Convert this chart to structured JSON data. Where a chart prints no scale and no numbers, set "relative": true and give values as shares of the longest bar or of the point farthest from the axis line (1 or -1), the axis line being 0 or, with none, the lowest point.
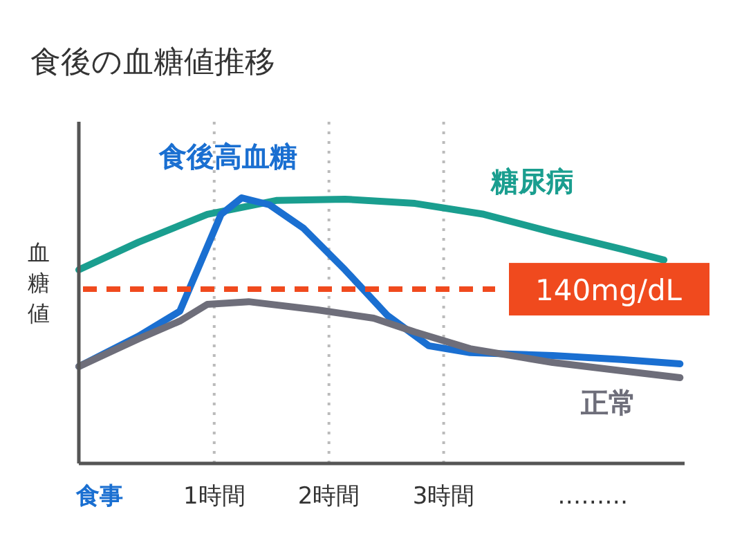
{
  "chart_data": {
    "type": "line",
    "title": "食後の血糖値推移",
    "ylabel": "血糖値",
    "relative": true,
    "xlim": [
      -0.18,
      5.1
    ],
    "xticks": [
      {
        "value": 0,
        "label": "食事"
      },
      {
        "value": 1,
        "label": "1時間"
      },
      {
        "value": 2,
        "label": "2時間"
      },
      {
        "value": 3,
        "label": "3時間"
      },
      {
        "value": 4.3,
        "label": "………"
      }
    ],
    "series": [
      {
        "name": "糖尿病",
        "color": "#1a9e8f",
        "x": [
          -0.18,
          0.34,
          0.94,
          1.54,
          2.14,
          2.75,
          3.35,
          3.95,
          4.55,
          4.92
        ],
        "values": [
          0.729,
          0.833,
          0.938,
          0.99,
          0.995,
          0.979,
          0.938,
          0.87,
          0.807,
          0.766
        ]
      },
      {
        "name": "食後高血糖",
        "color": "#1a6fd1",
        "x": [
          -0.18,
          0.34,
          0.7,
          0.88,
          1.06,
          1.24,
          1.48,
          1.78,
          2.14,
          2.51,
          2.87,
          3.23,
          3.95,
          4.55,
          5.06
        ],
        "values": [
          0.365,
          0.479,
          0.573,
          0.755,
          0.938,
          1,
          0.974,
          0.885,
          0.729,
          0.557,
          0.443,
          0.417,
          0.406,
          0.391,
          0.375
        ]
      },
      {
        "name": "正常",
        "color": "#6e6e7a",
        "x": [
          -0.18,
          0.34,
          0.7,
          0.94,
          1.3,
          1.9,
          2.39,
          2.75,
          3.23,
          3.95,
          4.55,
          5.06
        ],
        "values": [
          0.365,
          0.469,
          0.536,
          0.599,
          0.609,
          0.578,
          0.547,
          0.495,
          0.432,
          0.38,
          0.349,
          0.323
        ]
      }
    ],
    "ref_lines": [
      {
        "axis": "y",
        "value": 0.656,
        "label": "140mg/dL",
        "color": "#f04a1e",
        "line_style": "dashed"
      },
      {
        "axis": "x",
        "value": 1,
        "color": "#bbbbbb",
        "line_style": "dotted"
      },
      {
        "axis": "x",
        "value": 2,
        "color": "#bbbbbb",
        "line_style": "dotted"
      },
      {
        "axis": "x",
        "value": 3,
        "color": "#bbbbbb",
        "line_style": "dotted"
      }
    ],
    "grid": false,
    "marker": "none",
    "line_style": "solid"
  }
}
